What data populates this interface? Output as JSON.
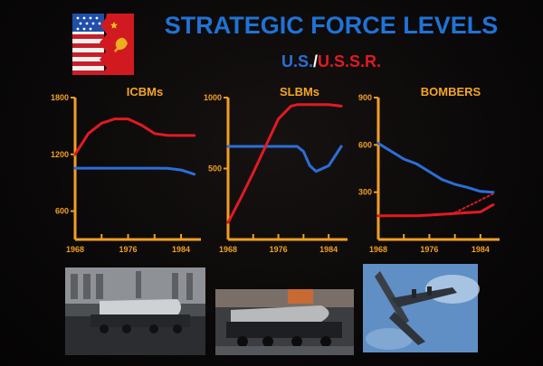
{
  "header": {
    "title": "STRATEGIC FORCE LEVELS",
    "subtitle_us": "U.S.",
    "subtitle_sep": "/",
    "subtitle_ussr": "U.S.S.R.",
    "flag_icon": "us-ussr-split-flag-icon"
  },
  "colors": {
    "title": "#1f73d6",
    "axis": "#f0a020",
    "us": "#2a6fd8",
    "ussr": "#e11a22"
  },
  "chart_data": [
    {
      "type": "line",
      "title": "ICBMs",
      "x": [
        1968,
        1970,
        1972,
        1974,
        1976,
        1978,
        1980,
        1982,
        1984,
        1986
      ],
      "xticks": [
        "1968",
        "1976",
        "1984"
      ],
      "yticks": [
        "1800",
        "1200",
        "600"
      ],
      "ylim": [
        300,
        1800
      ],
      "series": [
        {
          "key": "us",
          "values": [
            1054,
            1054,
            1054,
            1054,
            1054,
            1054,
            1054,
            1052,
            1035,
            990
          ]
        },
        {
          "key": "ussr",
          "values": [
            1200,
            1420,
            1530,
            1575,
            1575,
            1510,
            1420,
            1400,
            1400,
            1400
          ]
        }
      ]
    },
    {
      "type": "line",
      "title": "SLBMs",
      "x": [
        1968,
        1970,
        1972,
        1974,
        1976,
        1978,
        1979,
        1980,
        1981,
        1982,
        1984,
        1986
      ],
      "xticks": [
        "1968",
        "1976",
        "1984"
      ],
      "yticks": [
        "1000",
        "500"
      ],
      "ylim": [
        0,
        1000
      ],
      "series": [
        {
          "key": "us",
          "values": [
            656,
            656,
            656,
            656,
            656,
            656,
            656,
            620,
            520,
            480,
            520,
            656
          ]
        },
        {
          "key": "ussr",
          "values": [
            120,
            290,
            470,
            660,
            850,
            940,
            950,
            950,
            950,
            950,
            950,
            940
          ]
        }
      ]
    },
    {
      "type": "line",
      "title": "BOMBERS",
      "x": [
        1968,
        1970,
        1972,
        1974,
        1976,
        1978,
        1980,
        1982,
        1984,
        1986
      ],
      "xticks": [
        "1968",
        "1976",
        "1984"
      ],
      "yticks": [
        "900",
        "600",
        "300"
      ],
      "ylim": [
        0,
        900
      ],
      "series": [
        {
          "key": "us",
          "values": [
            610,
            560,
            510,
            480,
            430,
            380,
            350,
            330,
            305,
            300
          ]
        },
        {
          "key": "ussr",
          "values": [
            150,
            150,
            150,
            150,
            155,
            160,
            165,
            170,
            175,
            220
          ]
        },
        {
          "key": "us_dotted",
          "values": [
            null,
            null,
            null,
            null,
            null,
            null,
            170,
            210,
            250,
            290
          ]
        }
      ]
    }
  ]
}
